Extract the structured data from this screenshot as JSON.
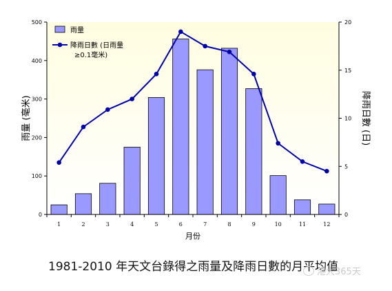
{
  "chart_data": {
    "type": "bar+line",
    "categories": [
      "1",
      "2",
      "3",
      "4",
      "5",
      "6",
      "7",
      "8",
      "9",
      "10",
      "11",
      "12"
    ],
    "series": [
      {
        "name": "雨量",
        "type": "bar",
        "axis": "left",
        "color": "#9999ff",
        "values": [
          25,
          54,
          81,
          175,
          304,
          456,
          376,
          432,
          327,
          101,
          38,
          27
        ]
      },
      {
        "name": "降雨日數 (日雨量 ≥0.1毫米)",
        "type": "line",
        "axis": "right",
        "color": "#0000aa",
        "values": [
          5.4,
          9.1,
          10.9,
          12.0,
          14.6,
          19.0,
          17.5,
          16.9,
          14.6,
          7.4,
          5.5,
          4.5
        ]
      }
    ],
    "xlabel": "月份",
    "ylabel_left": "雨量 (毫米)",
    "ylabel_right": "降雨日數 (日)",
    "ylim_left": [
      0,
      500
    ],
    "yticks_left": [
      "0",
      "100",
      "200",
      "300",
      "400",
      "500"
    ],
    "ylim_right": [
      0,
      20
    ],
    "yticks_right": [
      "0",
      "5",
      "10",
      "15",
      "20"
    ],
    "legend": {
      "placement": "top-left",
      "bar_label": "雨量",
      "line_label_1": "降雨日數 (日雨量",
      "line_label_2": "≥0.1毫米)"
    },
    "plot_background": "#fffde0",
    "grid": false
  },
  "caption": "1981-2010 年天文台錄得之雨量及降雨日數的月平均值",
  "watermark": "港大365天"
}
